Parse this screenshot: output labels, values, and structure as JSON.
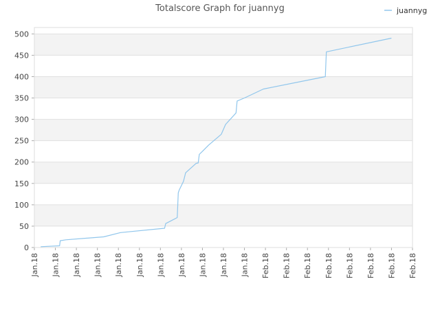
{
  "chart_data": {
    "type": "line",
    "title": "Totalscore Graph for juannyg",
    "xlabel": "",
    "ylabel": "",
    "ylim": [
      0,
      515
    ],
    "yticks": [
      0,
      50,
      100,
      150,
      200,
      250,
      300,
      350,
      400,
      450,
      500
    ],
    "xlim": [
      0,
      18
    ],
    "x_tick_labels": [
      "Jan.18",
      "Jan.18",
      "Jan.18",
      "Jan.18",
      "Jan.18",
      "Jan.18",
      "Jan.18",
      "Jan.18",
      "Jan.18",
      "Jan.18",
      "Jan.18",
      "Feb.18",
      "Feb.18",
      "Feb.18",
      "Feb.18",
      "Feb.18",
      "Feb.18",
      "Feb.18",
      "Feb.18"
    ],
    "grid": "horizontal alternating bands",
    "legend_position": "top-right",
    "colors": {
      "series": "#90c6ec",
      "band": "#f3f3f3",
      "grid": "#e0e0e0",
      "axis": "#cccccc"
    },
    "series": [
      {
        "name": "juannyg",
        "points": [
          [
            0.3,
            2
          ],
          [
            1.2,
            4
          ],
          [
            1.23,
            16
          ],
          [
            1.5,
            18
          ],
          [
            3.3,
            25
          ],
          [
            4.1,
            35
          ],
          [
            6.2,
            45
          ],
          [
            6.25,
            56
          ],
          [
            6.8,
            70
          ],
          [
            6.85,
            128
          ],
          [
            6.9,
            135
          ],
          [
            7.1,
            155
          ],
          [
            7.2,
            175
          ],
          [
            7.7,
            197
          ],
          [
            7.8,
            198
          ],
          [
            7.85,
            218
          ],
          [
            8.0,
            225
          ],
          [
            8.3,
            240
          ],
          [
            8.9,
            265
          ],
          [
            9.1,
            288
          ],
          [
            9.6,
            315
          ],
          [
            9.65,
            343
          ],
          [
            10.0,
            350
          ],
          [
            10.9,
            371
          ],
          [
            13.85,
            400
          ],
          [
            13.9,
            458
          ],
          [
            17.0,
            490
          ]
        ]
      }
    ]
  }
}
